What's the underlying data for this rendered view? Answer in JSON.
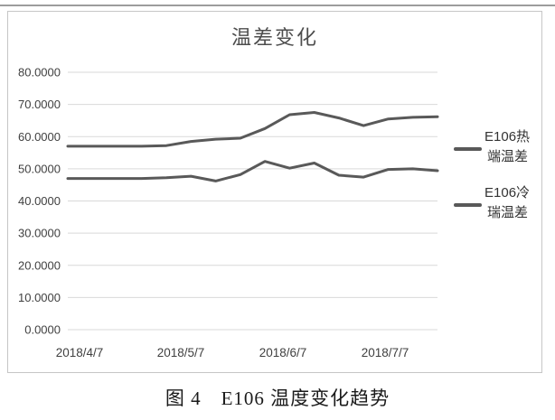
{
  "page": {
    "caption": "图 4　E106 温度变化趋势"
  },
  "chart_data": {
    "type": "line",
    "title": "温差变化",
    "x": [
      "2018/4/7",
      "2018/4/14",
      "2018/4/21",
      "2018/4/28",
      "2018/5/5",
      "2018/5/12",
      "2018/5/19",
      "2018/5/26",
      "2018/6/2",
      "2018/6/9",
      "2018/6/16",
      "2018/6/23",
      "2018/6/30",
      "2018/7/7",
      "2018/7/14",
      "2018/7/21"
    ],
    "x_tick_labels": [
      "2018/4/7",
      "2018/5/7",
      "2018/6/7",
      "2018/7/7"
    ],
    "y_tick_labels": [
      "0.0000",
      "10.0000",
      "20.0000",
      "30.0000",
      "40.0000",
      "50.0000",
      "60.0000",
      "70.0000",
      "80.0000"
    ],
    "ylim": [
      0,
      80
    ],
    "grid": true,
    "legend_position": "right",
    "series": [
      {
        "name": "E106热端温差",
        "legend_lines": [
          "E106热",
          "端温差"
        ],
        "values": [
          57.0,
          57.0,
          57.0,
          57.0,
          57.2,
          58.5,
          59.2,
          59.5,
          62.5,
          66.8,
          67.5,
          65.8,
          63.4,
          65.5,
          66.0,
          66.2
        ]
      },
      {
        "name": "E106冷瑞温差",
        "legend_lines": [
          "E106冷",
          "瑞温差"
        ],
        "values": [
          47.0,
          47.0,
          47.0,
          47.0,
          47.2,
          47.7,
          46.2,
          48.2,
          52.3,
          50.2,
          51.8,
          48.0,
          47.4,
          49.8,
          50.0,
          49.4
        ]
      }
    ],
    "colors": {
      "series_stroke": "#595959",
      "gridline": "#d9d9d9",
      "axis_text": "#404040",
      "title_text": "#4d4d4d",
      "legend_text": "#333333",
      "frame_border": "#c6c6c6"
    }
  }
}
